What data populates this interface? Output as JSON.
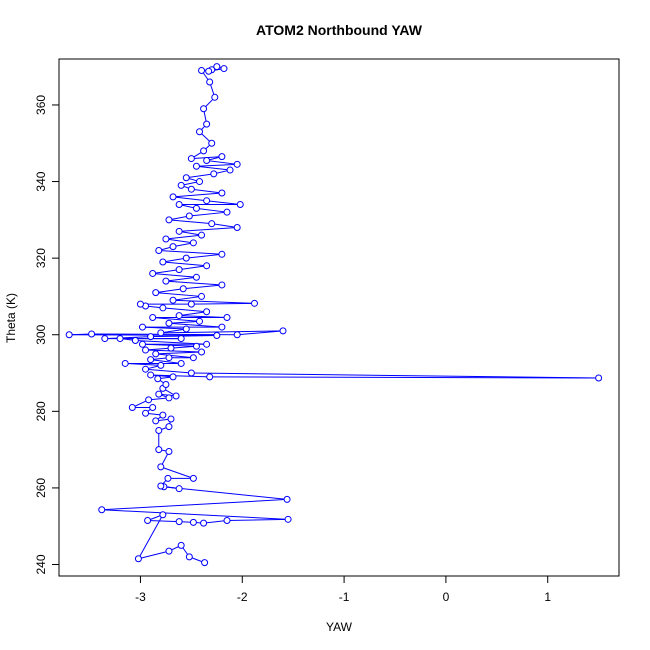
{
  "chart_data": {
    "type": "scatter",
    "title": "ATOM2 Northbound YAW",
    "xlabel": "YAW",
    "ylabel": "Theta (K)",
    "xlim": [
      -3.8,
      1.7
    ],
    "ylim": [
      237,
      372
    ],
    "x_ticks": [
      -3,
      -2,
      -1,
      0,
      1
    ],
    "y_ticks": [
      240,
      260,
      280,
      300,
      320,
      340,
      360
    ],
    "grid": false,
    "legend": "none",
    "connected": true,
    "series": [
      {
        "color": "#0000ff",
        "marker": "open-circle",
        "points": [
          [
            -2.37,
            240.5
          ],
          [
            -2.52,
            242.0
          ],
          [
            -2.6,
            245.0
          ],
          [
            -2.72,
            243.5
          ],
          [
            -3.02,
            241.5
          ],
          [
            -2.78,
            253.0
          ],
          [
            -2.93,
            251.5
          ],
          [
            -2.62,
            251.2
          ],
          [
            -2.48,
            251.0
          ],
          [
            -2.38,
            250.8
          ],
          [
            -2.15,
            251.5
          ],
          [
            -1.55,
            251.8
          ],
          [
            -3.38,
            254.3
          ],
          [
            -1.56,
            257.0
          ],
          [
            -2.77,
            260.3
          ],
          [
            -2.62,
            259.8
          ],
          [
            -2.8,
            260.5
          ],
          [
            -2.73,
            262.5
          ],
          [
            -2.48,
            262.5
          ],
          [
            -2.8,
            265.5
          ],
          [
            -2.72,
            269.5
          ],
          [
            -2.82,
            270.0
          ],
          [
            -2.82,
            275.0
          ],
          [
            -2.72,
            276.0
          ],
          [
            -2.7,
            278.0
          ],
          [
            -2.85,
            277.5
          ],
          [
            -2.78,
            279.0
          ],
          [
            -2.95,
            279.5
          ],
          [
            -2.88,
            281.0
          ],
          [
            -3.08,
            281.0
          ],
          [
            -2.92,
            283.0
          ],
          [
            -2.72,
            283.5
          ],
          [
            -2.82,
            284.5
          ],
          [
            -2.65,
            284.0
          ],
          [
            -2.78,
            286.0
          ],
          [
            -2.75,
            287.0
          ],
          [
            -2.83,
            288.5
          ],
          [
            -2.68,
            289.0
          ],
          [
            -2.9,
            289.5
          ],
          [
            -2.32,
            289.0
          ],
          [
            1.5,
            288.7
          ],
          [
            -2.5,
            290.0
          ],
          [
            -2.95,
            291.0
          ],
          [
            -2.8,
            292.0
          ],
          [
            -3.15,
            292.5
          ],
          [
            -2.6,
            292.5
          ],
          [
            -2.9,
            293.5
          ],
          [
            -2.72,
            294.0
          ],
          [
            -2.48,
            294.0
          ],
          [
            -2.85,
            295.0
          ],
          [
            -2.4,
            295.5
          ],
          [
            -2.95,
            296.0
          ],
          [
            -2.7,
            296.5
          ],
          [
            -2.45,
            297.0
          ],
          [
            -2.98,
            297.5
          ],
          [
            -2.35,
            297.5
          ],
          [
            -3.05,
            298.5
          ],
          [
            -3.2,
            299.0
          ],
          [
            -2.6,
            299.0
          ],
          [
            -3.35,
            299.0
          ],
          [
            -2.9,
            299.5
          ],
          [
            -2.25,
            299.8
          ],
          [
            -3.7,
            300.0
          ],
          [
            -3.48,
            300.2
          ],
          [
            -2.05,
            300.0
          ],
          [
            -1.6,
            301.0
          ],
          [
            -2.8,
            300.5
          ],
          [
            -2.55,
            301.5
          ],
          [
            -2.98,
            302.0
          ],
          [
            -2.2,
            302.0
          ],
          [
            -2.72,
            303.0
          ],
          [
            -2.42,
            303.5
          ],
          [
            -2.88,
            304.5
          ],
          [
            -2.15,
            304.5
          ],
          [
            -2.62,
            305.0
          ],
          [
            -2.35,
            306.0
          ],
          [
            -2.78,
            307.0
          ],
          [
            -2.95,
            307.5
          ],
          [
            -3.0,
            308.0
          ],
          [
            -2.5,
            308.0
          ],
          [
            -1.88,
            308.2
          ],
          [
            -2.68,
            309.0
          ],
          [
            -2.4,
            310.0
          ],
          [
            -2.85,
            311.0
          ],
          [
            -2.58,
            312.0
          ],
          [
            -2.2,
            313.0
          ],
          [
            -2.75,
            314.0
          ],
          [
            -2.45,
            315.0
          ],
          [
            -2.88,
            316.0
          ],
          [
            -2.62,
            317.0
          ],
          [
            -2.35,
            318.0
          ],
          [
            -2.78,
            319.0
          ],
          [
            -2.55,
            320.0
          ],
          [
            -2.2,
            321.0
          ],
          [
            -2.82,
            322.0
          ],
          [
            -2.68,
            323.0
          ],
          [
            -2.48,
            324.0
          ],
          [
            -2.75,
            325.0
          ],
          [
            -2.4,
            326.0
          ],
          [
            -2.62,
            327.0
          ],
          [
            -2.05,
            328.0
          ],
          [
            -2.3,
            329.0
          ],
          [
            -2.72,
            330.0
          ],
          [
            -2.52,
            331.0
          ],
          [
            -2.15,
            332.0
          ],
          [
            -2.45,
            333.0
          ],
          [
            -2.62,
            334.0
          ],
          [
            -2.02,
            334.0
          ],
          [
            -2.35,
            335.0
          ],
          [
            -2.68,
            336.0
          ],
          [
            -2.2,
            337.0
          ],
          [
            -2.5,
            338.0
          ],
          [
            -2.6,
            339.0
          ],
          [
            -2.42,
            340.0
          ],
          [
            -2.55,
            341.0
          ],
          [
            -2.28,
            342.0
          ],
          [
            -2.12,
            343.0
          ],
          [
            -2.45,
            344.0
          ],
          [
            -2.05,
            344.5
          ],
          [
            -2.35,
            345.5
          ],
          [
            -2.2,
            346.5
          ],
          [
            -2.5,
            346.0
          ],
          [
            -2.38,
            348.0
          ],
          [
            -2.3,
            350.0
          ],
          [
            -2.42,
            353.0
          ],
          [
            -2.35,
            355.0
          ],
          [
            -2.38,
            359.0
          ],
          [
            -2.27,
            362.0
          ],
          [
            -2.32,
            366.0
          ],
          [
            -2.4,
            369.0
          ],
          [
            -2.3,
            369.2
          ],
          [
            -2.25,
            370.0
          ],
          [
            -2.18,
            369.5
          ],
          [
            -2.33,
            368.8
          ]
        ]
      }
    ]
  }
}
